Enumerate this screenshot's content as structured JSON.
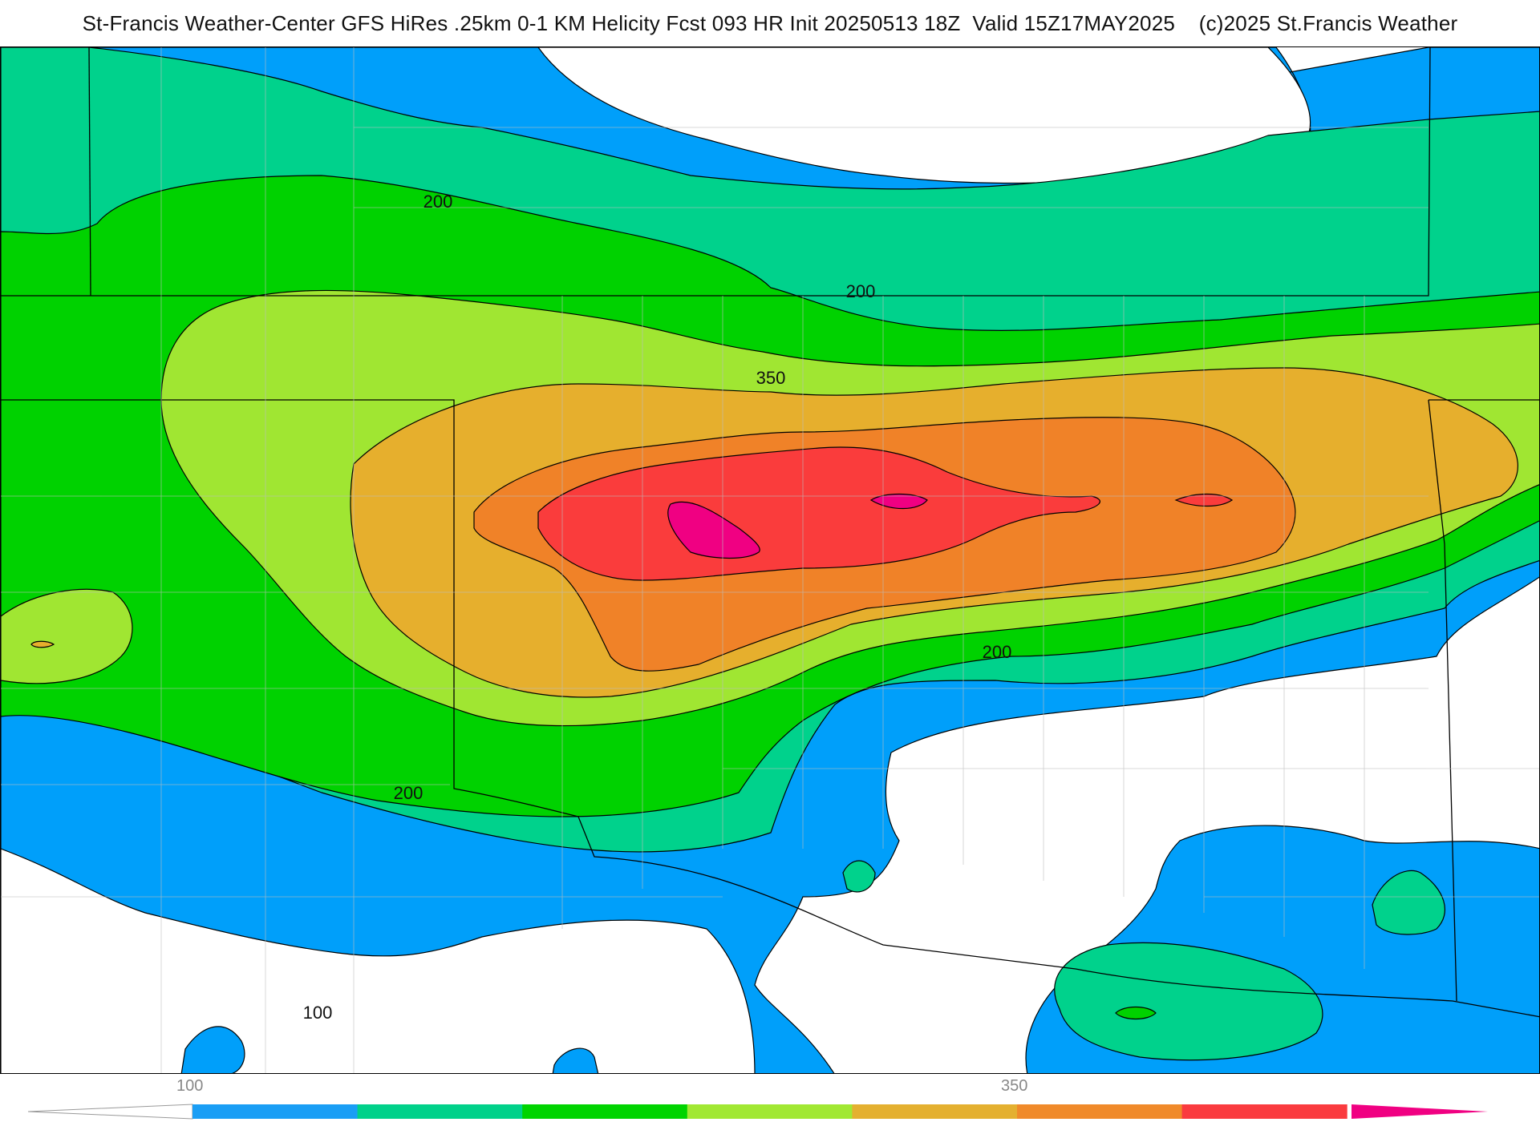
{
  "title": "St-Francis Weather-Center GFS HiRes .25km 0-1 KM Helicity Fcst 093 HR Init 20250513 18Z  Valid 15Z17MAY2025    (c)2025 St.Francis Weather",
  "contour_labels": [
    "200",
    "200",
    "350",
    "200",
    "200",
    "100"
  ],
  "colorbar": {
    "tick_labels": [
      "100",
      "350"
    ],
    "colors": [
      "#1a9ef5",
      "#00d18a",
      "#00d400",
      "#a1e833",
      "#e4b030",
      "#f08a2a",
      "#fa3b3f",
      "#f0008a"
    ]
  },
  "colors": {
    "blue": "#009ffa",
    "teal": "#00d28c",
    "green": "#00d200",
    "lime": "#a0e632",
    "gold": "#e6af2d",
    "orange": "#f08228",
    "red": "#fa3c3c",
    "magenta": "#f00082"
  }
}
